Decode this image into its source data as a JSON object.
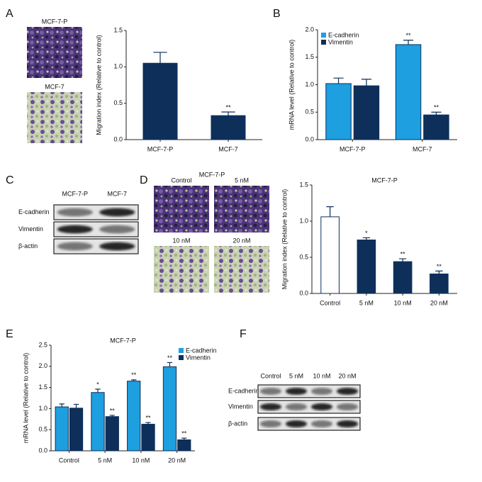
{
  "panel_labels": [
    "A",
    "B",
    "C",
    "D",
    "E",
    "F"
  ],
  "micrographs": {
    "A": [
      "MCF-7-P",
      "MCF-7"
    ],
    "D": {
      "title": "MCF-7-P",
      "labels": [
        "Control",
        "5 nM",
        "10 nM",
        "20 nM"
      ]
    }
  },
  "blots": {
    "C": {
      "columns": [
        "MCF-7-P",
        "MCF-7"
      ],
      "rows": [
        "E-cadherin",
        "Vimentin",
        "β-actin"
      ]
    },
    "F": {
      "columns": [
        "Control",
        "5 nM",
        "10 nM",
        "20 nM"
      ],
      "rows": [
        "E-cadherin",
        "Vimentin",
        "β-actin"
      ]
    }
  },
  "chart_data": [
    {
      "type": "bar",
      "ylabel": "Migration index (Relative to control)",
      "categories": [
        "MCF-7-P",
        "MCF-7"
      ],
      "values": [
        1.05,
        0.33
      ],
      "errors": [
        0.15,
        0.05
      ],
      "annotations": [
        null,
        "**"
      ],
      "color": "#0e2f5a",
      "ylim": [
        0,
        1.5
      ],
      "yticks": [
        {
          "value": 0,
          "label": "0.0"
        },
        0.5,
        {
          "value": 1,
          "label": "1.0"
        },
        1.5
      ]
    },
    {
      "type": "bar",
      "ylabel": "mRNA level (Relative to control)",
      "categories": [
        "MCF-7-P",
        "MCF-7"
      ],
      "series": [
        {
          "name": "E-cadherin",
          "color": "#1d9fe0",
          "values": [
            1.02,
            1.73
          ],
          "errors": [
            0.1,
            0.08
          ],
          "annotations": [
            null,
            "**"
          ]
        },
        {
          "name": "Vimentin",
          "color": "#0e2f5a",
          "values": [
            0.98,
            0.45
          ],
          "errors": [
            0.12,
            0.05
          ],
          "annotations": [
            null,
            "**"
          ]
        }
      ],
      "legend": "upper left",
      "ylim": [
        0,
        2
      ],
      "yticks": [
        {
          "value": 0,
          "label": "0.0"
        },
        0.5,
        {
          "value": 1,
          "label": "1.0"
        },
        1.5,
        {
          "value": 2,
          "label": "2.0"
        }
      ]
    },
    {
      "type": "bar",
      "title": "MCF-7-P",
      "ylabel": "Migration index (Relative to control)",
      "categories": [
        "Control",
        "5 nM",
        "10 nM",
        "20 nM"
      ],
      "values": [
        1.06,
        0.74,
        0.44,
        0.27
      ],
      "errors": [
        0.14,
        0.03,
        0.04,
        0.04
      ],
      "annotations": [
        null,
        "*",
        "**",
        "**"
      ],
      "colors": [
        "#ffffff",
        "#0e2f5a",
        "#0e2f5a",
        "#0e2f5a"
      ],
      "ylim": [
        0,
        1.5
      ],
      "yticks": [
        {
          "value": 0,
          "label": "0.0"
        },
        0.5,
        {
          "value": 1,
          "label": "1.0"
        },
        1.5
      ]
    },
    {
      "type": "bar",
      "title": "MCF-7-P",
      "ylabel": "mRNA level (Relative to control)",
      "categories": [
        "Control",
        "5 nM",
        "10 nM",
        "20 nM"
      ],
      "series": [
        {
          "name": "E-cadherin",
          "color": "#1d9fe0",
          "values": [
            1.04,
            1.38,
            1.65,
            1.99
          ],
          "errors": [
            0.07,
            0.08,
            0.03,
            0.1
          ],
          "annotations": [
            null,
            "*",
            "**",
            "**"
          ]
        },
        {
          "name": "Vimentin",
          "color": "#0e2f5a",
          "values": [
            1.01,
            0.81,
            0.63,
            0.26
          ],
          "errors": [
            0.09,
            0.03,
            0.04,
            0.04
          ],
          "annotations": [
            null,
            "**",
            "**",
            "**"
          ]
        }
      ],
      "legend": "upper right",
      "ylim": [
        0,
        2.5
      ],
      "yticks": [
        {
          "value": 0,
          "label": "0.0"
        },
        0.5,
        {
          "value": 1,
          "label": "1.0"
        },
        1.5,
        {
          "value": 2,
          "label": "2.0"
        },
        2.5
      ]
    }
  ]
}
